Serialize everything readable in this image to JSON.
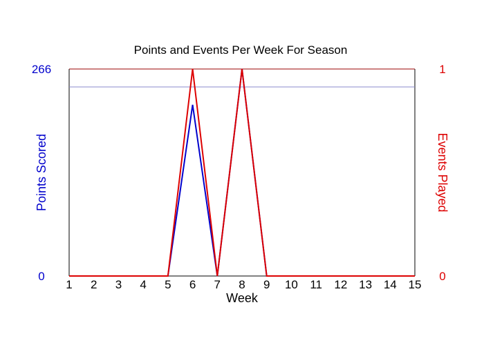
{
  "chart_data": {
    "type": "line",
    "title": "Points and Events Per Week For Season",
    "xlabel": "Week",
    "ylabel_left": "Points Scored",
    "ylabel_right": "Events Played",
    "x": [
      1,
      2,
      3,
      4,
      5,
      6,
      7,
      8,
      9,
      10,
      11,
      12,
      13,
      14,
      15
    ],
    "x_tick_labels": [
      "1",
      "2",
      "3",
      "4",
      "5",
      "6",
      "7",
      "8",
      "9",
      "10",
      "11",
      "12",
      "13",
      "14",
      "15"
    ],
    "xlim": [
      1,
      15
    ],
    "ylim_left": [
      0,
      266
    ],
    "ylim_right": [
      0,
      1
    ],
    "y_left_tick_labels": [
      "0",
      "266"
    ],
    "y_right_tick_labels": [
      "0",
      "1"
    ],
    "reference_line_left": 243,
    "grid": false,
    "legend": "none",
    "series": [
      {
        "axis": "left",
        "color": "#0000cc",
        "values": [
          0,
          0,
          0,
          0,
          0,
          220,
          0,
          266,
          0,
          0,
          0,
          0,
          0,
          0,
          0
        ]
      },
      {
        "axis": "right",
        "color": "#dd0000",
        "values": [
          0,
          0,
          0,
          0,
          0,
          1,
          0,
          1,
          0,
          0,
          0,
          0,
          0,
          0,
          0
        ]
      }
    ],
    "colors": {
      "left_axis": "#0000cc",
      "right_axis": "#dd0000",
      "reference_line": "#8888cc",
      "frame_top": "#990000",
      "frame": "#000000"
    }
  }
}
